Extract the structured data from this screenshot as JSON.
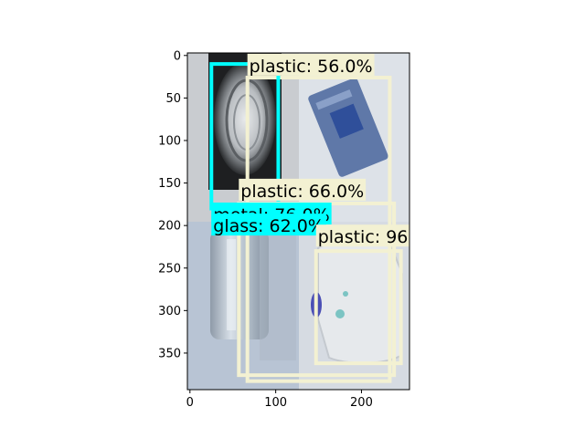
{
  "chart_data": {
    "type": "image-detection",
    "title": "",
    "xlabel": "",
    "ylabel": "",
    "image_extent": {
      "x": [
        0,
        256
      ],
      "y": [
        393,
        0
      ]
    },
    "xlim": [
      -3,
      256
    ],
    "ylim": [
      393,
      -3
    ],
    "x_ticks": [
      0,
      100,
      200
    ],
    "y_ticks": [
      0,
      50,
      100,
      150,
      200,
      250,
      300,
      350
    ],
    "detections": [
      {
        "name": "box-plastic-56",
        "label": "plastic: 56.0%",
        "x1": 67,
        "y1": 26,
        "x2": 233,
        "y2": 383,
        "color": "#f3f1d2",
        "text_x": 67,
        "text_y": 13
      },
      {
        "name": "box-metal-76",
        "label": "metal: 76.0%",
        "x1": 25,
        "y1": 10,
        "x2": 103,
        "y2": 180,
        "color": "#00ffff",
        "text_x": 25,
        "text_y": 188
      },
      {
        "name": "box-plastic-66",
        "label": "plastic: 66.0%",
        "x1": 57,
        "y1": 174,
        "x2": 238,
        "y2": 376,
        "color": "#f3f1d2",
        "text_x": 57,
        "text_y": 160
      },
      {
        "name": "box-glass-62",
        "label": "glass: 62.0%",
        "x1": 25,
        "y1": 222,
        "x2": 25,
        "y2": 222,
        "color": "#00ffff",
        "text_x": 25,
        "text_y": 201
      },
      {
        "name": "box-plastic-96",
        "label": "plastic: 96",
        "x1": 147,
        "y1": 230,
        "x2": 246,
        "y2": 362,
        "color": "#f3f1d2",
        "text_x": 147,
        "text_y": 214
      }
    ]
  }
}
